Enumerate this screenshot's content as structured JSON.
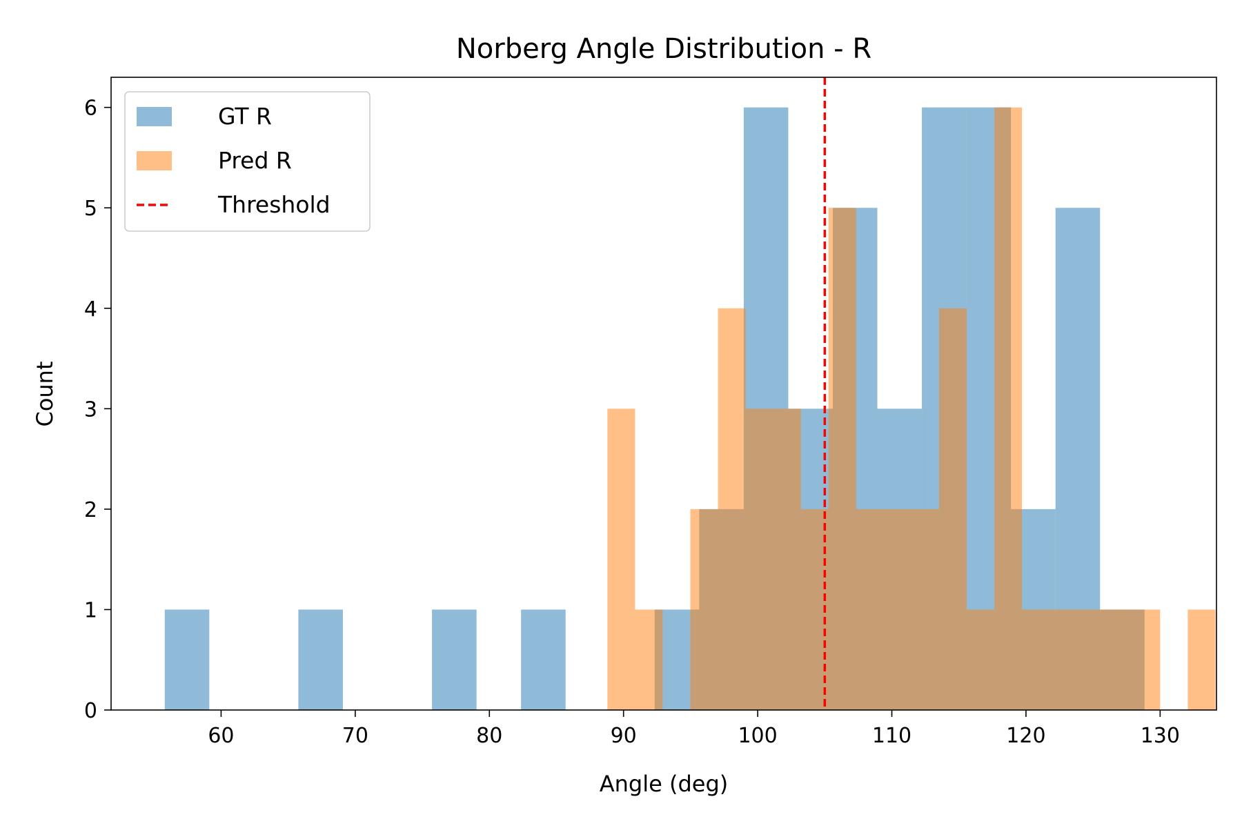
{
  "chart_data": {
    "type": "histogram",
    "title": "Norberg Angle Distribution - R",
    "xlabel": "Angle (deg)",
    "ylabel": "Count",
    "xlim": [
      51.8,
      134.2
    ],
    "ylim": [
      0,
      6.3
    ],
    "xticks": [
      60,
      70,
      80,
      90,
      100,
      110,
      120,
      130
    ],
    "yticks": [
      0,
      1,
      2,
      3,
      4,
      5,
      6
    ],
    "grid": false,
    "legend_position": "top-left",
    "threshold": {
      "name": "Threshold",
      "x": 105,
      "color": "#ff0000",
      "style": "dashed"
    },
    "series": [
      {
        "name": "GT R",
        "color": "#1f77b4",
        "alpha": 0.5,
        "bin_start": 55.8,
        "bin_width": 3.32,
        "counts": [
          1,
          0,
          0,
          1,
          0,
          0,
          1,
          0,
          1,
          0,
          0,
          1,
          2,
          6,
          3,
          5,
          3,
          6,
          6,
          2,
          5,
          1
        ]
      },
      {
        "name": "Pred R",
        "color": "#ff7f0e",
        "alpha": 0.5,
        "bin_start": 88.8,
        "bin_width": 2.06,
        "counts": [
          3,
          1,
          0,
          2,
          4,
          3,
          3,
          2,
          5,
          2,
          2,
          2,
          4,
          1,
          6,
          1,
          1,
          1,
          1,
          1,
          0,
          1
        ]
      }
    ]
  }
}
